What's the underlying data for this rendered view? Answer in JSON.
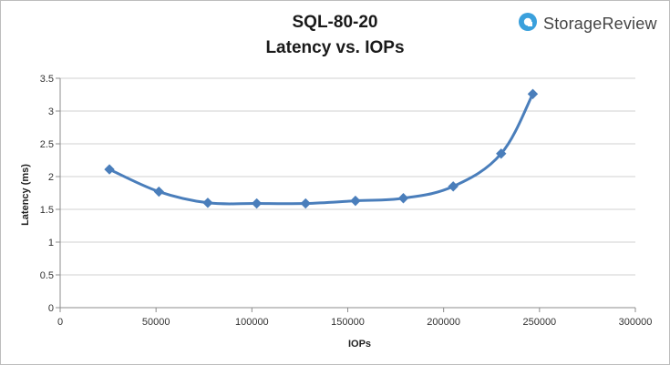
{
  "header": {
    "title_line1": "SQL-80-20",
    "title_line2": "Latency vs. IOPs"
  },
  "logo": {
    "text": "StorageReview",
    "icon": "storagereview-logo-icon",
    "color": "#3aa0dc"
  },
  "chart_data": {
    "type": "line",
    "title": "SQL-80-20 Latency vs. IOPs",
    "xlabel": "IOPs",
    "ylabel": "Latency (ms)",
    "xlim": [
      0,
      300000
    ],
    "ylim": [
      0,
      3.5
    ],
    "x_ticks": [
      0,
      50000,
      100000,
      150000,
      200000,
      250000,
      300000
    ],
    "y_ticks": [
      0,
      0.5,
      1,
      1.5,
      2,
      2.5,
      3,
      3.5
    ],
    "x_tick_labels": [
      "0",
      "50000",
      "100000",
      "150000",
      "200000",
      "250000",
      "300000"
    ],
    "y_tick_labels": [
      "0",
      "0.5",
      "1",
      "1.5",
      "2",
      "2.5",
      "3",
      "3.5"
    ],
    "grid": "horizontal",
    "legend": "none",
    "marker": "diamond",
    "smooth": true,
    "color": "#4a7ebb",
    "series": [
      {
        "x": [
          25700,
          51500,
          77000,
          102500,
          128000,
          154000,
          179000,
          205000,
          230000,
          246500
        ],
        "y": [
          2.11,
          1.77,
          1.6,
          1.59,
          1.59,
          1.63,
          1.67,
          1.85,
          2.35,
          3.26
        ]
      }
    ]
  }
}
